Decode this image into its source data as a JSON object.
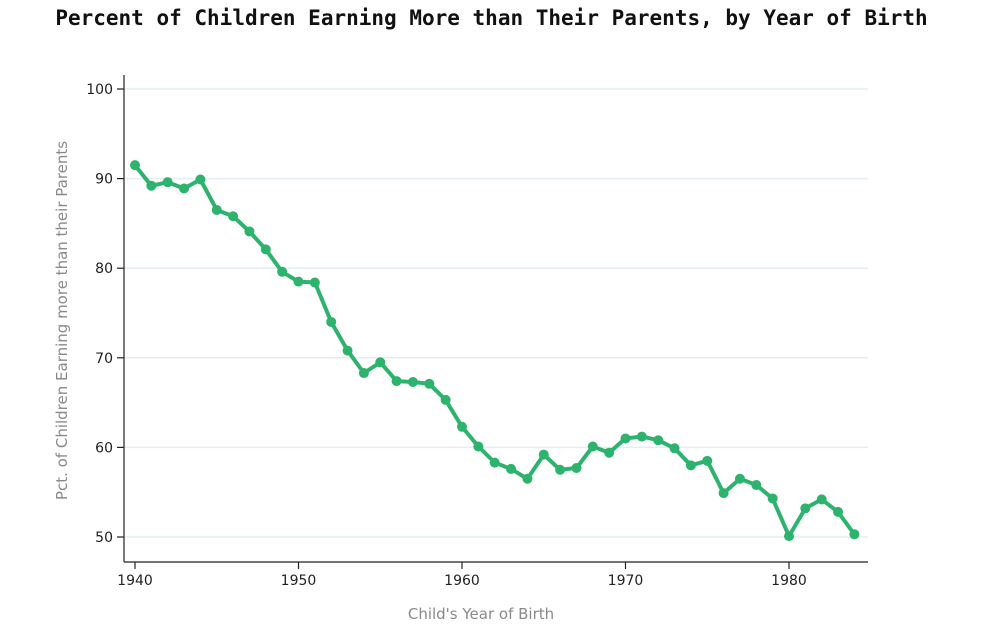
{
  "chart_data": {
    "type": "line",
    "title": "Percent of Children Earning More than Their Parents, by Year of Birth",
    "xlabel": "Child's Year of Birth",
    "ylabel": "Pct. of Children Earning more than their Parents",
    "xlim": [
      1940,
      1984
    ],
    "ylim": [
      48,
      101
    ],
    "xticks": [
      1940,
      1950,
      1960,
      1970,
      1980
    ],
    "yticks": [
      50,
      60,
      70,
      80,
      90,
      100
    ],
    "grid": "horizontal",
    "line_color": "#2db36e",
    "grid_color": "#e4eef2",
    "x": [
      1940,
      1941,
      1942,
      1943,
      1944,
      1945,
      1946,
      1947,
      1948,
      1949,
      1950,
      1951,
      1952,
      1953,
      1954,
      1955,
      1956,
      1957,
      1958,
      1959,
      1960,
      1961,
      1962,
      1963,
      1964,
      1965,
      1966,
      1967,
      1968,
      1969,
      1970,
      1971,
      1972,
      1973,
      1974,
      1975,
      1976,
      1977,
      1978,
      1979,
      1980,
      1981,
      1982,
      1983,
      1984
    ],
    "y": [
      91.5,
      89.2,
      89.6,
      88.9,
      89.9,
      86.5,
      85.8,
      84.1,
      82.1,
      79.6,
      78.5,
      78.4,
      74.0,
      70.8,
      68.3,
      69.5,
      67.4,
      67.3,
      67.1,
      65.3,
      62.3,
      60.1,
      58.3,
      57.6,
      56.5,
      59.2,
      57.5,
      57.7,
      60.1,
      59.4,
      61.0,
      61.2,
      60.8,
      59.9,
      58.0,
      58.5,
      54.9,
      56.5,
      55.8,
      54.3,
      50.1,
      53.2,
      54.2,
      52.8,
      50.3
    ]
  }
}
